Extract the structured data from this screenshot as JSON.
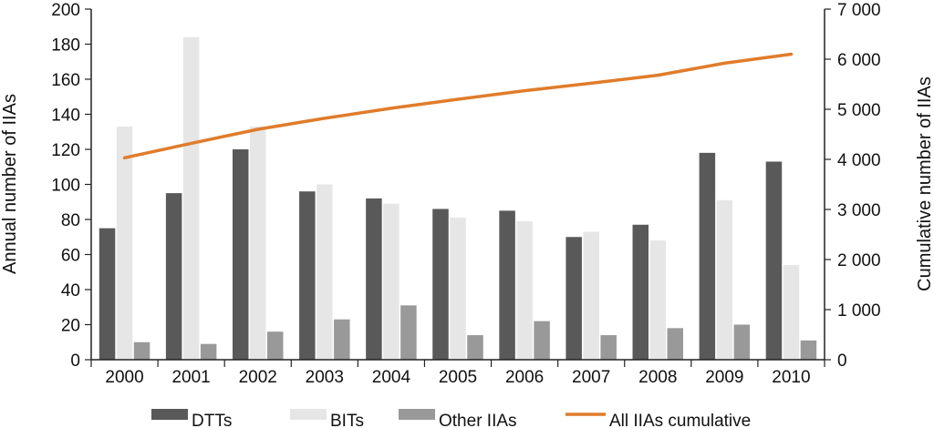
{
  "chart_data": {
    "type": "bar",
    "categories": [
      "2000",
      "2001",
      "2002",
      "2003",
      "2004",
      "2005",
      "2006",
      "2007",
      "2008",
      "2009",
      "2010"
    ],
    "series": [
      {
        "name": "DTTs",
        "type": "bar",
        "axis": "left",
        "color": "#595959",
        "values": [
          75,
          95,
          120,
          96,
          92,
          86,
          85,
          70,
          77,
          118,
          113
        ]
      },
      {
        "name": "BITs",
        "type": "bar",
        "axis": "left",
        "color": "#e6e6e6",
        "values": [
          133,
          184,
          133,
          100,
          89,
          81,
          79,
          73,
          68,
          91,
          54
        ]
      },
      {
        "name": "Other IIAs",
        "type": "bar",
        "axis": "left",
        "color": "#999999",
        "values": [
          10,
          9,
          16,
          23,
          31,
          14,
          22,
          14,
          18,
          20,
          11
        ]
      },
      {
        "name": "All IIAs cumulative",
        "type": "line",
        "axis": "right",
        "color": "#e07c2a",
        "values": [
          4030,
          4320,
          4600,
          4820,
          5020,
          5200,
          5370,
          5520,
          5680,
          5920,
          6100
        ]
      }
    ],
    "ylabel": "Annual number of IIAs",
    "y2label": "Cumulative number of IIAs",
    "ylim": [
      0,
      200
    ],
    "y2lim": [
      0,
      7000
    ],
    "yticks": [
      "0",
      "20",
      "40",
      "60",
      "80",
      "100",
      "120",
      "140",
      "160",
      "180",
      "200"
    ],
    "y2ticks": [
      "0",
      "1 000",
      "2 000",
      "3 000",
      "4 000",
      "5 000",
      "6 000",
      "7 000"
    ],
    "grid": false,
    "legend_position": "bottom"
  }
}
